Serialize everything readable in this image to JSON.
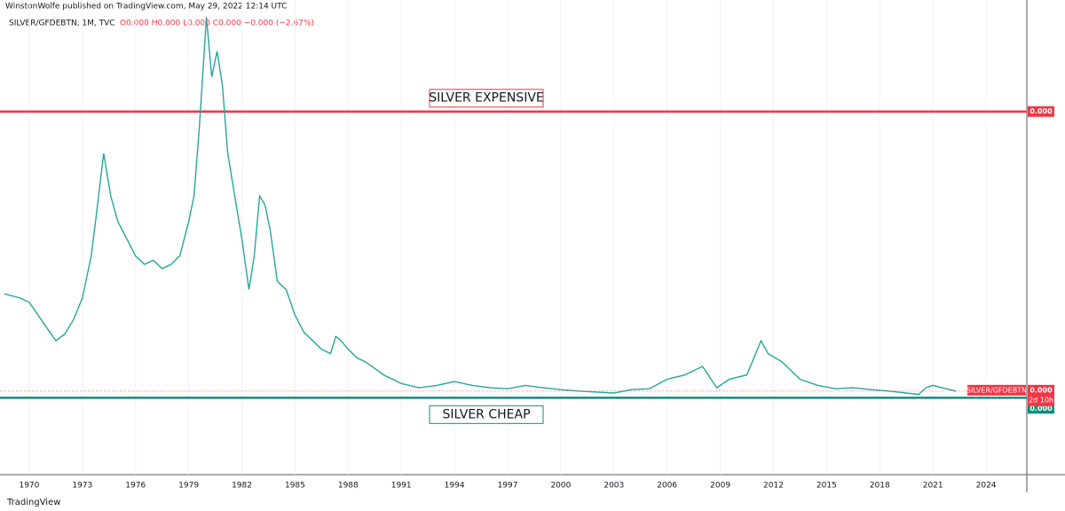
{
  "chart_data": {
    "type": "line",
    "header": "WinstonWolfe published on TradingView.com, May 29, 2022 12:14 UTC",
    "legend_text": "SILVER/GFDEBTN, 1M, TVC",
    "ohlc_text": "O0.000 H0.000 L0.000 C0.000 −0.000 (−2.67%)",
    "footer": "TradingView",
    "series": [
      {
        "name": "SILVER/GFDEBTN",
        "color": "#26a69a",
        "x": [
          1968.6,
          1969.5,
          1970,
          1970.5,
          1971,
          1971.5,
          1972,
          1972.5,
          1973,
          1973.5,
          1973.8,
          1974.2,
          1974.6,
          1975,
          1975.5,
          1976,
          1976.5,
          1977,
          1977.5,
          1978,
          1978.5,
          1979,
          1979.3,
          1979.6,
          1980,
          1980.3,
          1980.6,
          1980.9,
          1981.2,
          1981.6,
          1982,
          1982.4,
          1982.7,
          1983,
          1983.3,
          1983.6,
          1984,
          1984.5,
          1985,
          1985.5,
          1986,
          1986.5,
          1987,
          1987.3,
          1987.6,
          1988,
          1988.5,
          1989,
          1990,
          1991,
          1992,
          1993,
          1994,
          1995,
          1996,
          1997,
          1998,
          1999,
          2000,
          2001,
          2002,
          2003,
          2004,
          2005,
          2006,
          2007,
          2008,
          2008.8,
          2009.5,
          2010.5,
          2011.3,
          2011.7,
          2012.5,
          2013.5,
          2014.5,
          2015.5,
          2016.5,
          2017.5,
          2018.5,
          2019.5,
          2020.2,
          2020.6,
          2021,
          2021.5,
          2022.3
        ],
        "values": [
          38.1,
          37.2,
          36.3,
          33.6,
          30.9,
          28.2,
          29.6,
          32.7,
          37.2,
          46.1,
          55.1,
          67.7,
          58.7,
          53.3,
          49.7,
          46.1,
          44.3,
          45.2,
          43.4,
          44.3,
          46.1,
          53.3,
          58.7,
          73.1,
          96.4,
          83.8,
          89.2,
          82.0,
          67.7,
          58.7,
          49.7,
          39.0,
          46.1,
          58.7,
          56.9,
          51.5,
          40.7,
          39.0,
          33.6,
          30.0,
          28.2,
          26.4,
          25.5,
          29.1,
          28.2,
          26.4,
          24.6,
          23.7,
          21.0,
          19.2,
          18.3,
          18.8,
          19.6,
          18.8,
          18.3,
          18.1,
          18.8,
          18.3,
          17.9,
          17.6,
          17.4,
          17.2,
          17.9,
          18.1,
          20.1,
          21.0,
          22.8,
          18.3,
          20.1,
          21.0,
          28.2,
          25.5,
          23.7,
          20.1,
          18.8,
          18.1,
          18.3,
          17.9,
          17.6,
          17.2,
          16.9,
          18.3,
          18.8,
          18.3,
          17.6
        ]
      }
    ],
    "hlines": [
      {
        "label": "SILVER EXPENSIVE",
        "value": 76.5,
        "color": "#f23645",
        "price_label": "0.000"
      },
      {
        "label": "SILVER CHEAP",
        "value": 16.2,
        "color": "#0d8f7d",
        "price_label": "0.000"
      }
    ],
    "last_price_label": "0.000",
    "countdown": "2d 10h",
    "xlim": [
      1968.35,
      2026.3
    ],
    "ylim": [
      0,
      100
    ],
    "xticks": [
      1970,
      1973,
      1976,
      1979,
      1982,
      1985,
      1988,
      1991,
      1994,
      1997,
      2000,
      2003,
      2006,
      2009,
      2012,
      2015,
      2018,
      2021,
      2024
    ],
    "grid": true
  }
}
